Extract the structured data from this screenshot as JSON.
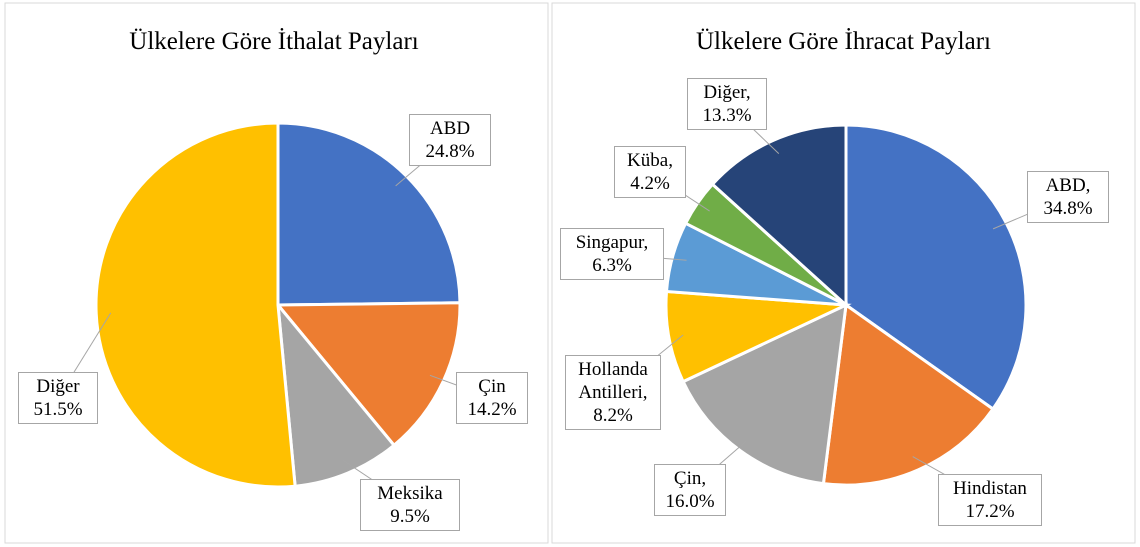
{
  "chart_data": [
    {
      "type": "pie",
      "title": "Ülkelere Göre İthalat Payları",
      "categories": [
        "ABD",
        "Çin",
        "Meksika",
        "Diğer"
      ],
      "values": [
        24.8,
        14.2,
        9.5,
        51.5
      ],
      "value_labels": [
        "24.8%",
        "14.2%",
        "9.5%",
        "51.5%"
      ],
      "colors": [
        "#4472c4",
        "#ed7d31",
        "#a5a5a5",
        "#ffc000"
      ]
    },
    {
      "type": "pie",
      "title": "Ülkelere Göre İhracat Payları",
      "categories": [
        "ABD,",
        "Hindistan",
        "Çin,",
        "Hollanda Antilleri,",
        "Singapur,",
        "Küba,",
        "Diğer,"
      ],
      "values": [
        34.8,
        17.2,
        16.0,
        8.2,
        6.3,
        4.2,
        13.3
      ],
      "value_labels": [
        "34.8%",
        "17.2%",
        "16.0%",
        "8.2%",
        "6.3%",
        "4.2%",
        "13.3%"
      ],
      "colors": [
        "#4472c4",
        "#ed7d31",
        "#a5a5a5",
        "#ffc000",
        "#5b9bd5",
        "#70ad47",
        "#264478"
      ]
    }
  ]
}
